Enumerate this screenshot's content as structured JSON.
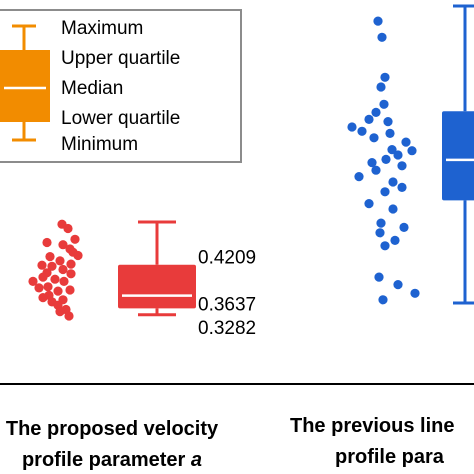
{
  "legend": {
    "items": [
      "Maximum",
      "Upper quartile",
      "Median",
      "Lower quartile",
      "Minimum"
    ],
    "box_color": "#f28c00",
    "median_color": "#ffffff"
  },
  "chart_data": {
    "type": "box",
    "title": "",
    "ylabel": "",
    "ylim": [
      0.2,
      0.9
    ],
    "grid": false,
    "legend_position": "top-left",
    "categories": [
      {
        "lines": [
          "The proposed velocity",
          "profile parameter "
        ],
        "italic_suffix": "a"
      },
      {
        "lines": [
          "The previous line",
          "profile para"
        ],
        "italic_suffix": ""
      }
    ],
    "series": [
      {
        "color": "#e83b3b",
        "box": {
          "min": 0.3282,
          "q1": 0.34,
          "median": 0.3637,
          "q3": 0.4209,
          "max": 0.5
        },
        "box_labels": [
          "0.4209",
          "0.3637",
          "0.3282"
        ],
        "points": [
          [
            0.062,
            0.496
          ],
          [
            0.068,
            0.488
          ],
          [
            0.075,
            0.468
          ],
          [
            0.063,
            0.458
          ],
          [
            0.07,
            0.45
          ],
          [
            0.047,
            0.462
          ],
          [
            0.073,
            0.444
          ],
          [
            0.078,
            0.438
          ],
          [
            0.05,
            0.436
          ],
          [
            0.06,
            0.428
          ],
          [
            0.071,
            0.422
          ],
          [
            0.042,
            0.42
          ],
          [
            0.052,
            0.418
          ],
          [
            0.063,
            0.412
          ],
          [
            0.047,
            0.406
          ],
          [
            0.071,
            0.404
          ],
          [
            0.043,
            0.398
          ],
          [
            0.055,
            0.394
          ],
          [
            0.064,
            0.39
          ],
          [
            0.033,
            0.39
          ],
          [
            0.048,
            0.38
          ],
          [
            0.039,
            0.378
          ],
          [
            0.07,
            0.374
          ],
          [
            0.058,
            0.372
          ],
          [
            0.049,
            0.364
          ],
          [
            0.043,
            0.36
          ],
          [
            0.063,
            0.356
          ],
          [
            0.052,
            0.352
          ],
          [
            0.058,
            0.346
          ],
          [
            0.066,
            0.338
          ],
          [
            0.06,
            0.334
          ],
          [
            0.069,
            0.326
          ]
        ]
      },
      {
        "color": "#1e62d0",
        "box": {
          "min": 0.35,
          "q1": 0.54,
          "median": 0.615,
          "q3": 0.705,
          "max": 0.9
        },
        "box_labels": [],
        "points": [
          [
            0.378,
            0.872
          ],
          [
            0.382,
            0.842
          ],
          [
            0.385,
            0.768
          ],
          [
            0.381,
            0.75
          ],
          [
            0.384,
            0.718
          ],
          [
            0.376,
            0.703
          ],
          [
            0.369,
            0.69
          ],
          [
            0.388,
            0.686
          ],
          [
            0.352,
            0.676
          ],
          [
            0.362,
            0.668
          ],
          [
            0.39,
            0.664
          ],
          [
            0.374,
            0.656
          ],
          [
            0.406,
            0.648
          ],
          [
            0.392,
            0.634
          ],
          [
            0.412,
            0.632
          ],
          [
            0.398,
            0.624
          ],
          [
            0.386,
            0.616
          ],
          [
            0.372,
            0.61
          ],
          [
            0.402,
            0.604
          ],
          [
            0.376,
            0.596
          ],
          [
            0.359,
            0.584
          ],
          [
            0.393,
            0.574
          ],
          [
            0.402,
            0.564
          ],
          [
            0.385,
            0.556
          ],
          [
            0.369,
            0.534
          ],
          [
            0.393,
            0.524
          ],
          [
            0.381,
            0.498
          ],
          [
            0.404,
            0.49
          ],
          [
            0.38,
            0.48
          ],
          [
            0.395,
            0.466
          ],
          [
            0.385,
            0.456
          ],
          [
            0.379,
            0.398
          ],
          [
            0.398,
            0.384
          ],
          [
            0.415,
            0.368
          ],
          [
            0.383,
            0.356
          ]
        ]
      }
    ]
  }
}
